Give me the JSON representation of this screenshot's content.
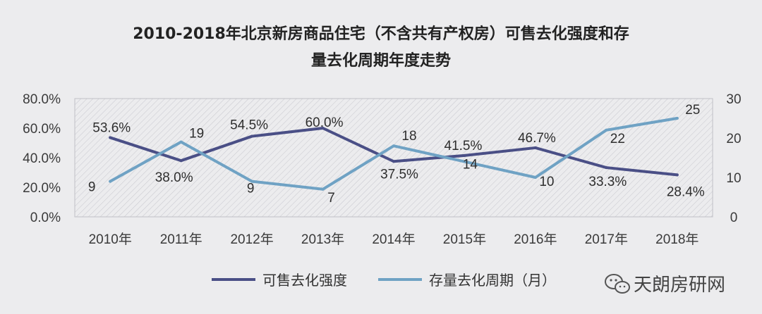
{
  "chart_data": {
    "type": "line",
    "title_line1": "2010-2018年北京新房商品住宅（不含共有产权房）可售去化强度和存",
    "title_line2": "量去化周期年度走势",
    "categories": [
      "2010年",
      "2011年",
      "2012年",
      "2013年",
      "2014年",
      "2015年",
      "2016年",
      "2017年",
      "2018年"
    ],
    "y_left": {
      "min": 0,
      "max": 0.8,
      "ticks": [
        "0.0%",
        "20.0%",
        "40.0%",
        "60.0%",
        "80.0%"
      ]
    },
    "y_right": {
      "min": 0,
      "max": 30,
      "ticks": [
        "0",
        "10",
        "20",
        "30"
      ]
    },
    "grid": false,
    "legend_position": "bottom",
    "series": [
      {
        "name": "可售去化强度",
        "axis": "left",
        "color": "#4a4f86",
        "values": [
          0.536,
          0.38,
          0.545,
          0.6,
          0.375,
          0.415,
          0.467,
          0.333,
          0.284
        ],
        "labels": [
          "53.6%",
          "38.0%",
          "54.5%",
          "60.0%",
          "37.5%",
          "41.5%",
          "46.7%",
          "33.3%",
          "28.4%"
        ]
      },
      {
        "name": "存量去化周期（月）",
        "axis": "right",
        "color": "#6fa2c4",
        "values": [
          9,
          19,
          9,
          7,
          18,
          14,
          10,
          22,
          25
        ],
        "labels": [
          "9",
          "19",
          "9",
          "7",
          "18",
          "14",
          "10",
          "22",
          "25"
        ]
      }
    ]
  },
  "watermark": {
    "text": "天朗房研网",
    "icon": "wechat-icon"
  }
}
